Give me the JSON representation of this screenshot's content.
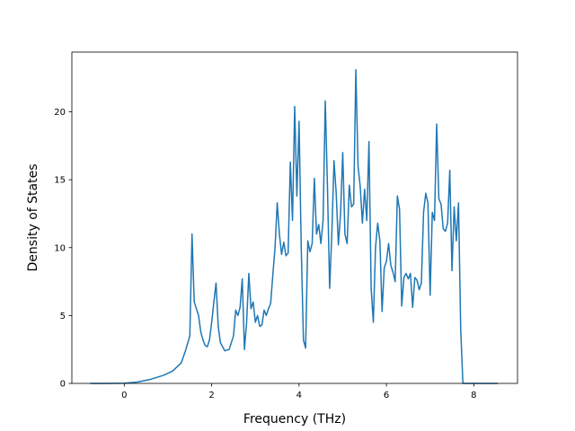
{
  "chart_data": {
    "type": "line",
    "title": "",
    "xlabel": "Frequency (THz)",
    "ylabel": "Density of States",
    "xlim": [
      -1.2,
      9.0
    ],
    "ylim": [
      0,
      24.4
    ],
    "xticks": [
      0,
      2,
      4,
      6,
      8
    ],
    "yticks": [
      0,
      5,
      10,
      15,
      20
    ],
    "grid": false,
    "legend": "none",
    "colors": {
      "line": "#1f77b4",
      "axes": "#000000",
      "background": "#ffffff"
    },
    "series": [
      {
        "x": [
          -0.78,
          -0.4,
          0,
          0.3,
          0.6,
          0.9,
          1.1,
          1.3,
          1.4,
          1.5,
          1.55,
          1.6,
          1.7,
          1.75,
          1.8,
          1.85,
          1.9,
          1.95,
          2.0,
          2.05,
          2.1,
          2.15,
          2.2,
          2.3,
          2.4,
          2.5,
          2.55,
          2.6,
          2.65,
          2.7,
          2.75,
          2.8,
          2.85,
          2.9,
          2.95,
          3.0,
          3.05,
          3.1,
          3.15,
          3.2,
          3.25,
          3.3,
          3.35,
          3.4,
          3.45,
          3.5,
          3.55,
          3.6,
          3.65,
          3.7,
          3.75,
          3.8,
          3.85,
          3.9,
          3.95,
          4.0,
          4.05,
          4.1,
          4.15,
          4.2,
          4.25,
          4.3,
          4.35,
          4.4,
          4.45,
          4.5,
          4.55,
          4.6,
          4.65,
          4.7,
          4.75,
          4.8,
          4.85,
          4.9,
          4.95,
          5.0,
          5.05,
          5.1,
          5.15,
          5.2,
          5.25,
          5.3,
          5.35,
          5.4,
          5.45,
          5.5,
          5.55,
          5.6,
          5.65,
          5.7,
          5.75,
          5.8,
          5.85,
          5.9,
          5.95,
          6.0,
          6.05,
          6.1,
          6.15,
          6.2,
          6.25,
          6.3,
          6.35,
          6.4,
          6.45,
          6.5,
          6.55,
          6.6,
          6.65,
          6.7,
          6.75,
          6.8,
          6.85,
          6.9,
          6.95,
          7.0,
          7.05,
          7.1,
          7.15,
          7.2,
          7.25,
          7.3,
          7.35,
          7.4,
          7.45,
          7.5,
          7.55,
          7.6,
          7.65,
          7.7,
          7.75,
          7.8,
          7.9,
          8.2,
          8.55
        ],
        "y": [
          0,
          0,
          0.02,
          0.1,
          0.3,
          0.6,
          0.9,
          1.5,
          2.4,
          3.5,
          11.0,
          6.0,
          5.0,
          3.8,
          3.2,
          2.8,
          2.7,
          3.2,
          4.5,
          6.0,
          7.4,
          4.2,
          3.0,
          2.4,
          2.5,
          3.5,
          5.4,
          5.0,
          5.6,
          7.7,
          2.5,
          4.5,
          8.1,
          5.5,
          6.0,
          4.5,
          5.0,
          4.2,
          4.3,
          5.4,
          5.0,
          5.5,
          5.9,
          8.0,
          10.0,
          13.3,
          11.0,
          9.5,
          10.4,
          9.4,
          9.6,
          16.3,
          12.0,
          20.4,
          13.8,
          19.3,
          10.0,
          3.2,
          2.6,
          10.5,
          9.7,
          10.3,
          15.1,
          11.0,
          11.7,
          10.3,
          12.0,
          20.8,
          14.5,
          7.0,
          11.0,
          16.4,
          14.0,
          10.2,
          12.5,
          17.0,
          11.0,
          10.3,
          14.6,
          13.0,
          13.2,
          23.1,
          16.0,
          14.5,
          11.8,
          14.3,
          12.0,
          17.8,
          7.0,
          4.5,
          10.0,
          11.8,
          10.5,
          5.3,
          8.5,
          9.0,
          10.3,
          8.7,
          8.2,
          7.5,
          13.8,
          12.8,
          5.7,
          7.8,
          8.1,
          7.7,
          8.1,
          5.6,
          7.8,
          7.6,
          6.9,
          7.4,
          12.6,
          14.0,
          13.3,
          6.5,
          12.6,
          12.0,
          19.1,
          13.6,
          13.2,
          11.4,
          11.2,
          11.8,
          15.7,
          8.3,
          13.0,
          10.5,
          13.3,
          4.0,
          0,
          0,
          0,
          0,
          0
        ]
      }
    ]
  }
}
